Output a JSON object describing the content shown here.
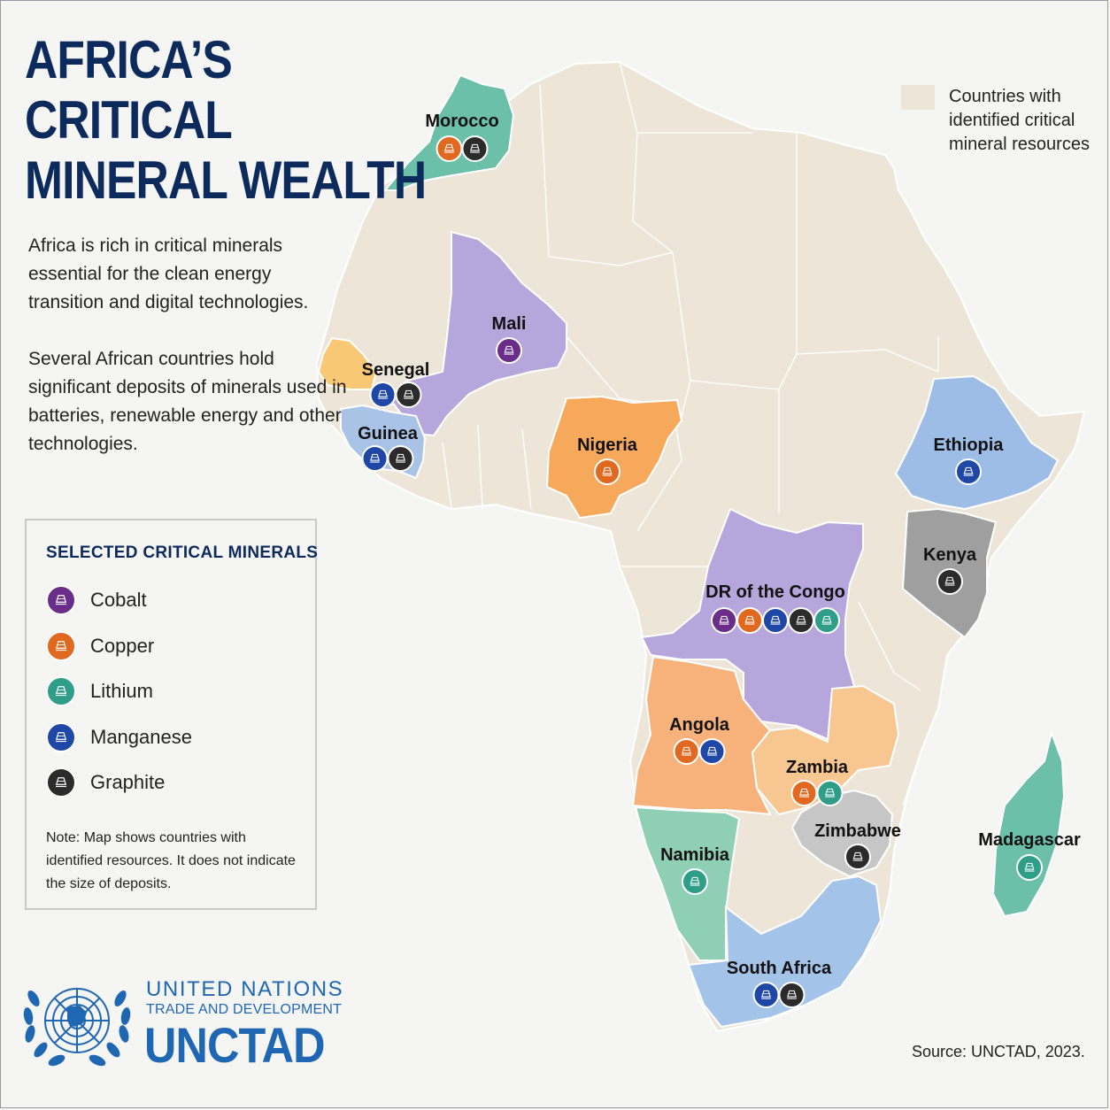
{
  "title": {
    "line1": "AFRICA’S",
    "line2": "CRITICAL",
    "line3": "MINERAL WEALTH"
  },
  "intro": {
    "p1": "Africa is rich in critical minerals essential for the clean energy transition and digital technologies.",
    "p2": "Several African countries hold significant deposits of minerals used in batteries, renewable energy and other technologies."
  },
  "map_legend": {
    "text": "Countries with identified critical mineral resources",
    "swatch_color": "#ece5d8"
  },
  "mineral_legend": {
    "title": "SELECTED CRITICAL MINERALS",
    "items": [
      {
        "key": "cobalt",
        "label": "Cobalt",
        "color": "#6b2d8a"
      },
      {
        "key": "copper",
        "label": "Copper",
        "color": "#e0681f"
      },
      {
        "key": "lithium",
        "label": "Lithium",
        "color": "#2f9e88"
      },
      {
        "key": "manganese",
        "label": "Manganese",
        "color": "#1f47a5"
      },
      {
        "key": "graphite",
        "label": "Graphite",
        "color": "#2b2b2b"
      }
    ],
    "note": "Note: Map shows countries with identified resources. It does not indicate the size of deposits."
  },
  "countries": [
    {
      "name": "Morocco",
      "fill": "#6cbfa8",
      "minerals": [
        "copper",
        "graphite"
      ]
    },
    {
      "name": "Mali",
      "fill": "#b7a6db",
      "minerals": [
        "cobalt"
      ]
    },
    {
      "name": "Senegal",
      "fill": "#f8c874",
      "minerals": [
        "manganese",
        "graphite"
      ]
    },
    {
      "name": "Guinea",
      "fill": "#a8c3e6",
      "minerals": [
        "manganese",
        "graphite"
      ]
    },
    {
      "name": "Nigeria",
      "fill": "#f6a85b",
      "minerals": [
        "copper"
      ]
    },
    {
      "name": "Ethiopia",
      "fill": "#9dbde6",
      "minerals": [
        "manganese"
      ]
    },
    {
      "name": "Kenya",
      "fill": "#9f9f9f",
      "minerals": [
        "graphite"
      ]
    },
    {
      "name": "DR of the Congo",
      "fill": "#b7a6db",
      "minerals": [
        "cobalt",
        "copper",
        "manganese",
        "graphite",
        "lithium"
      ]
    },
    {
      "name": "Angola",
      "fill": "#f6b27a",
      "minerals": [
        "copper",
        "manganese"
      ]
    },
    {
      "name": "Zambia",
      "fill": "#f8c690",
      "minerals": [
        "copper",
        "lithium"
      ]
    },
    {
      "name": "Zimbabwe",
      "fill": "#c6c6c6",
      "minerals": [
        "graphite"
      ]
    },
    {
      "name": "Namibia",
      "fill": "#8fcfb5",
      "minerals": [
        "lithium"
      ]
    },
    {
      "name": "South Africa",
      "fill": "#a3c3e8",
      "minerals": [
        "manganese",
        "graphite"
      ]
    },
    {
      "name": "Madagascar",
      "fill": "#6cbfa8",
      "minerals": [
        "lithium"
      ]
    }
  ],
  "base_land_color": "#ece5d8",
  "branding": {
    "line1": "UNITED NATIONS",
    "line2": "TRADE AND DEVELOPMENT",
    "line3": "UNCTAD"
  },
  "source": "Source: UNCTAD, 2023."
}
